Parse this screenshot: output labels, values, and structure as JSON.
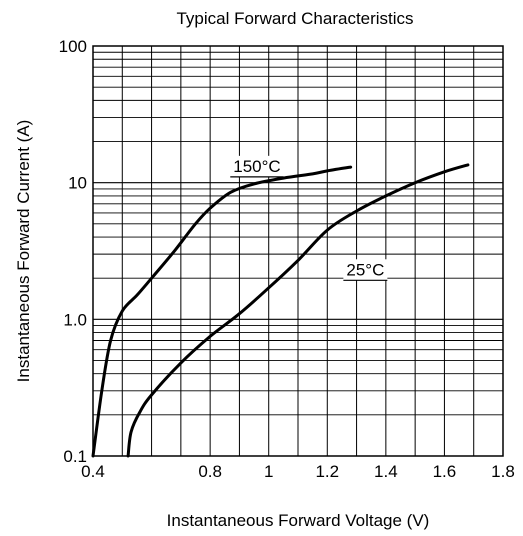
{
  "chart_data": {
    "type": "line",
    "title": "Typical Forward Characteristics",
    "xlabel": "Instantaneous Forward Voltage (V)",
    "ylabel": "Instantaneous Forward Current (A)",
    "xlim": [
      0.4,
      1.8
    ],
    "ylim": [
      0.1,
      100
    ],
    "y_scale": "log",
    "grid": true,
    "x_ticks": [
      {
        "value": 0.4,
        "label": "0.4"
      },
      {
        "value": 0.6,
        "label": ""
      },
      {
        "value": 0.8,
        "label": "0.8"
      },
      {
        "value": 1.0,
        "label": "1"
      },
      {
        "value": 1.2,
        "label": "1.2"
      },
      {
        "value": 1.4,
        "label": "1.4"
      },
      {
        "value": 1.6,
        "label": "1.6"
      },
      {
        "value": 1.8,
        "label": "1.8"
      }
    ],
    "y_ticks": [
      {
        "value": 0.1,
        "label": "0.1"
      },
      {
        "value": 1,
        "label": "1.0"
      },
      {
        "value": 10,
        "label": "10"
      },
      {
        "value": 100,
        "label": "100"
      }
    ],
    "series": [
      {
        "name": "150°C",
        "label_at": [
          0.96,
          12
        ],
        "points": [
          [
            0.4,
            0.1
          ],
          [
            0.43,
            0.3
          ],
          [
            0.46,
            0.7
          ],
          [
            0.5,
            1.15
          ],
          [
            0.55,
            1.5
          ],
          [
            0.6,
            2.0
          ],
          [
            0.68,
            3.2
          ],
          [
            0.75,
            5.0
          ],
          [
            0.8,
            6.5
          ],
          [
            0.87,
            8.5
          ],
          [
            0.95,
            9.8
          ],
          [
            1.05,
            10.8
          ],
          [
            1.15,
            11.6
          ],
          [
            1.2,
            12.2
          ],
          [
            1.28,
            13.0
          ]
        ]
      },
      {
        "name": "25°C",
        "label_at": [
          1.33,
          2.1
        ],
        "points": [
          [
            0.52,
            0.1
          ],
          [
            0.53,
            0.15
          ],
          [
            0.56,
            0.21
          ],
          [
            0.6,
            0.28
          ],
          [
            0.7,
            0.48
          ],
          [
            0.8,
            0.75
          ],
          [
            0.9,
            1.1
          ],
          [
            1.0,
            1.7
          ],
          [
            1.1,
            2.7
          ],
          [
            1.2,
            4.5
          ],
          [
            1.3,
            6.2
          ],
          [
            1.4,
            8.0
          ],
          [
            1.5,
            10.0
          ],
          [
            1.6,
            12.0
          ],
          [
            1.68,
            13.5
          ]
        ]
      }
    ]
  }
}
